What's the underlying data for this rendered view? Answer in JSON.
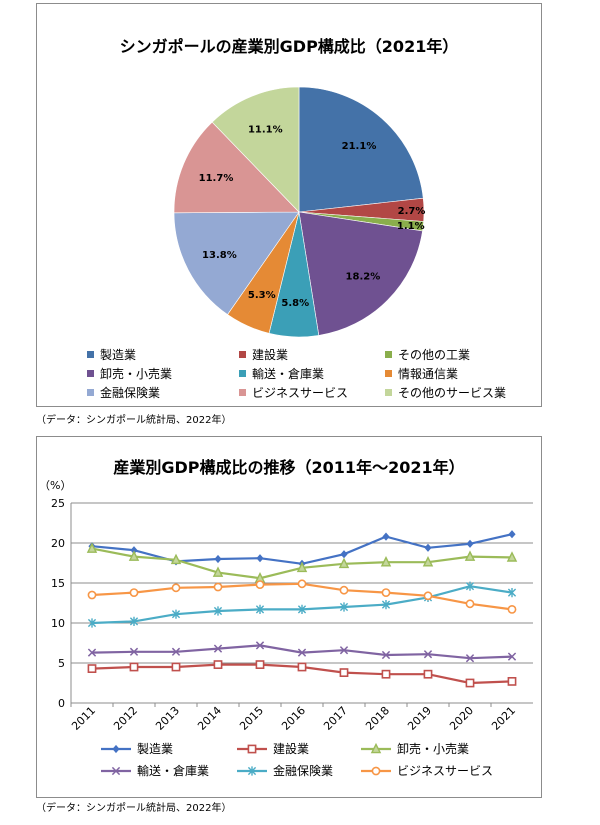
{
  "chart_data": [
    {
      "type": "pie",
      "title": "シンガポールの産業別GDP構成比（2021年）",
      "source": "（データ：シンガポール統計局、2022年）",
      "legend_position": "bottom",
      "slices": [
        {
          "label": "製造業",
          "value": 21.1,
          "display": "21.1%",
          "color": "#4472a8"
        },
        {
          "label": "建設業",
          "value": 2.7,
          "display": "2.7%",
          "color": "#b24745"
        },
        {
          "label": "その他の工業",
          "value": 1.1,
          "display": "1.1%",
          "color": "#8aae4c"
        },
        {
          "label": "卸売・小売業",
          "value": 18.2,
          "display": "18.2%",
          "color": "#6f5191"
        },
        {
          "label": "輸送・倉庫業",
          "value": 5.8,
          "display": "5.8%",
          "color": "#3b9fb7"
        },
        {
          "label": "情報通信業",
          "value": 5.3,
          "display": "5.3%",
          "color": "#e58a35"
        },
        {
          "label": "金融保険業",
          "value": 13.8,
          "display": "13.8%",
          "color": "#94a9d3"
        },
        {
          "label": "ビジネスサービス",
          "value": 11.7,
          "display": "11.7%",
          "color": "#d99594"
        },
        {
          "label": "その他のサービス業",
          "value": 11.1,
          "display": "11.1%",
          "color": "#c3d69b"
        }
      ]
    },
    {
      "type": "line",
      "title": "産業別GDP構成比の推移（2011年～2021年）",
      "source": "（データ：シンガポール統計局、2022年）",
      "ylabel": "（%）",
      "ylim": [
        0,
        25
      ],
      "yticks": [
        0,
        5,
        10,
        15,
        20,
        25
      ],
      "grid": true,
      "legend_position": "bottom",
      "x": [
        "2011",
        "2012",
        "2013",
        "2014",
        "2015",
        "2016",
        "2017",
        "2018",
        "2019",
        "2020",
        "2021"
      ],
      "series": [
        {
          "name": "製造業",
          "color": "#4472c4",
          "marker": "diamond",
          "values": [
            19.6,
            19.1,
            17.7,
            18.0,
            18.1,
            17.4,
            18.6,
            20.8,
            19.4,
            19.9,
            21.1
          ]
        },
        {
          "name": "建設業",
          "color": "#c0504d",
          "marker": "square",
          "values": [
            4.3,
            4.5,
            4.5,
            4.8,
            4.8,
            4.5,
            3.8,
            3.6,
            3.6,
            2.5,
            2.7
          ]
        },
        {
          "name": "卸売・小売業",
          "color": "#9bbb59",
          "marker": "triangle",
          "values": [
            19.3,
            18.3,
            17.9,
            16.3,
            15.6,
            16.9,
            17.4,
            17.6,
            17.6,
            18.3,
            18.2
          ]
        },
        {
          "name": "輸送・倉庫業",
          "color": "#8064a2",
          "marker": "x",
          "values": [
            6.3,
            6.4,
            6.4,
            6.8,
            7.2,
            6.3,
            6.6,
            6.0,
            6.1,
            5.6,
            5.8
          ]
        },
        {
          "name": "金融保険業",
          "color": "#4bacc6",
          "marker": "asterisk",
          "values": [
            10.0,
            10.2,
            11.1,
            11.5,
            11.7,
            11.7,
            12.0,
            12.3,
            13.2,
            14.6,
            13.8
          ]
        },
        {
          "name": "ビジネスサービス",
          "color": "#f79646",
          "marker": "circle",
          "values": [
            13.5,
            13.8,
            14.4,
            14.5,
            14.8,
            14.9,
            14.1,
            13.8,
            13.4,
            12.4,
            11.7
          ]
        }
      ]
    }
  ]
}
